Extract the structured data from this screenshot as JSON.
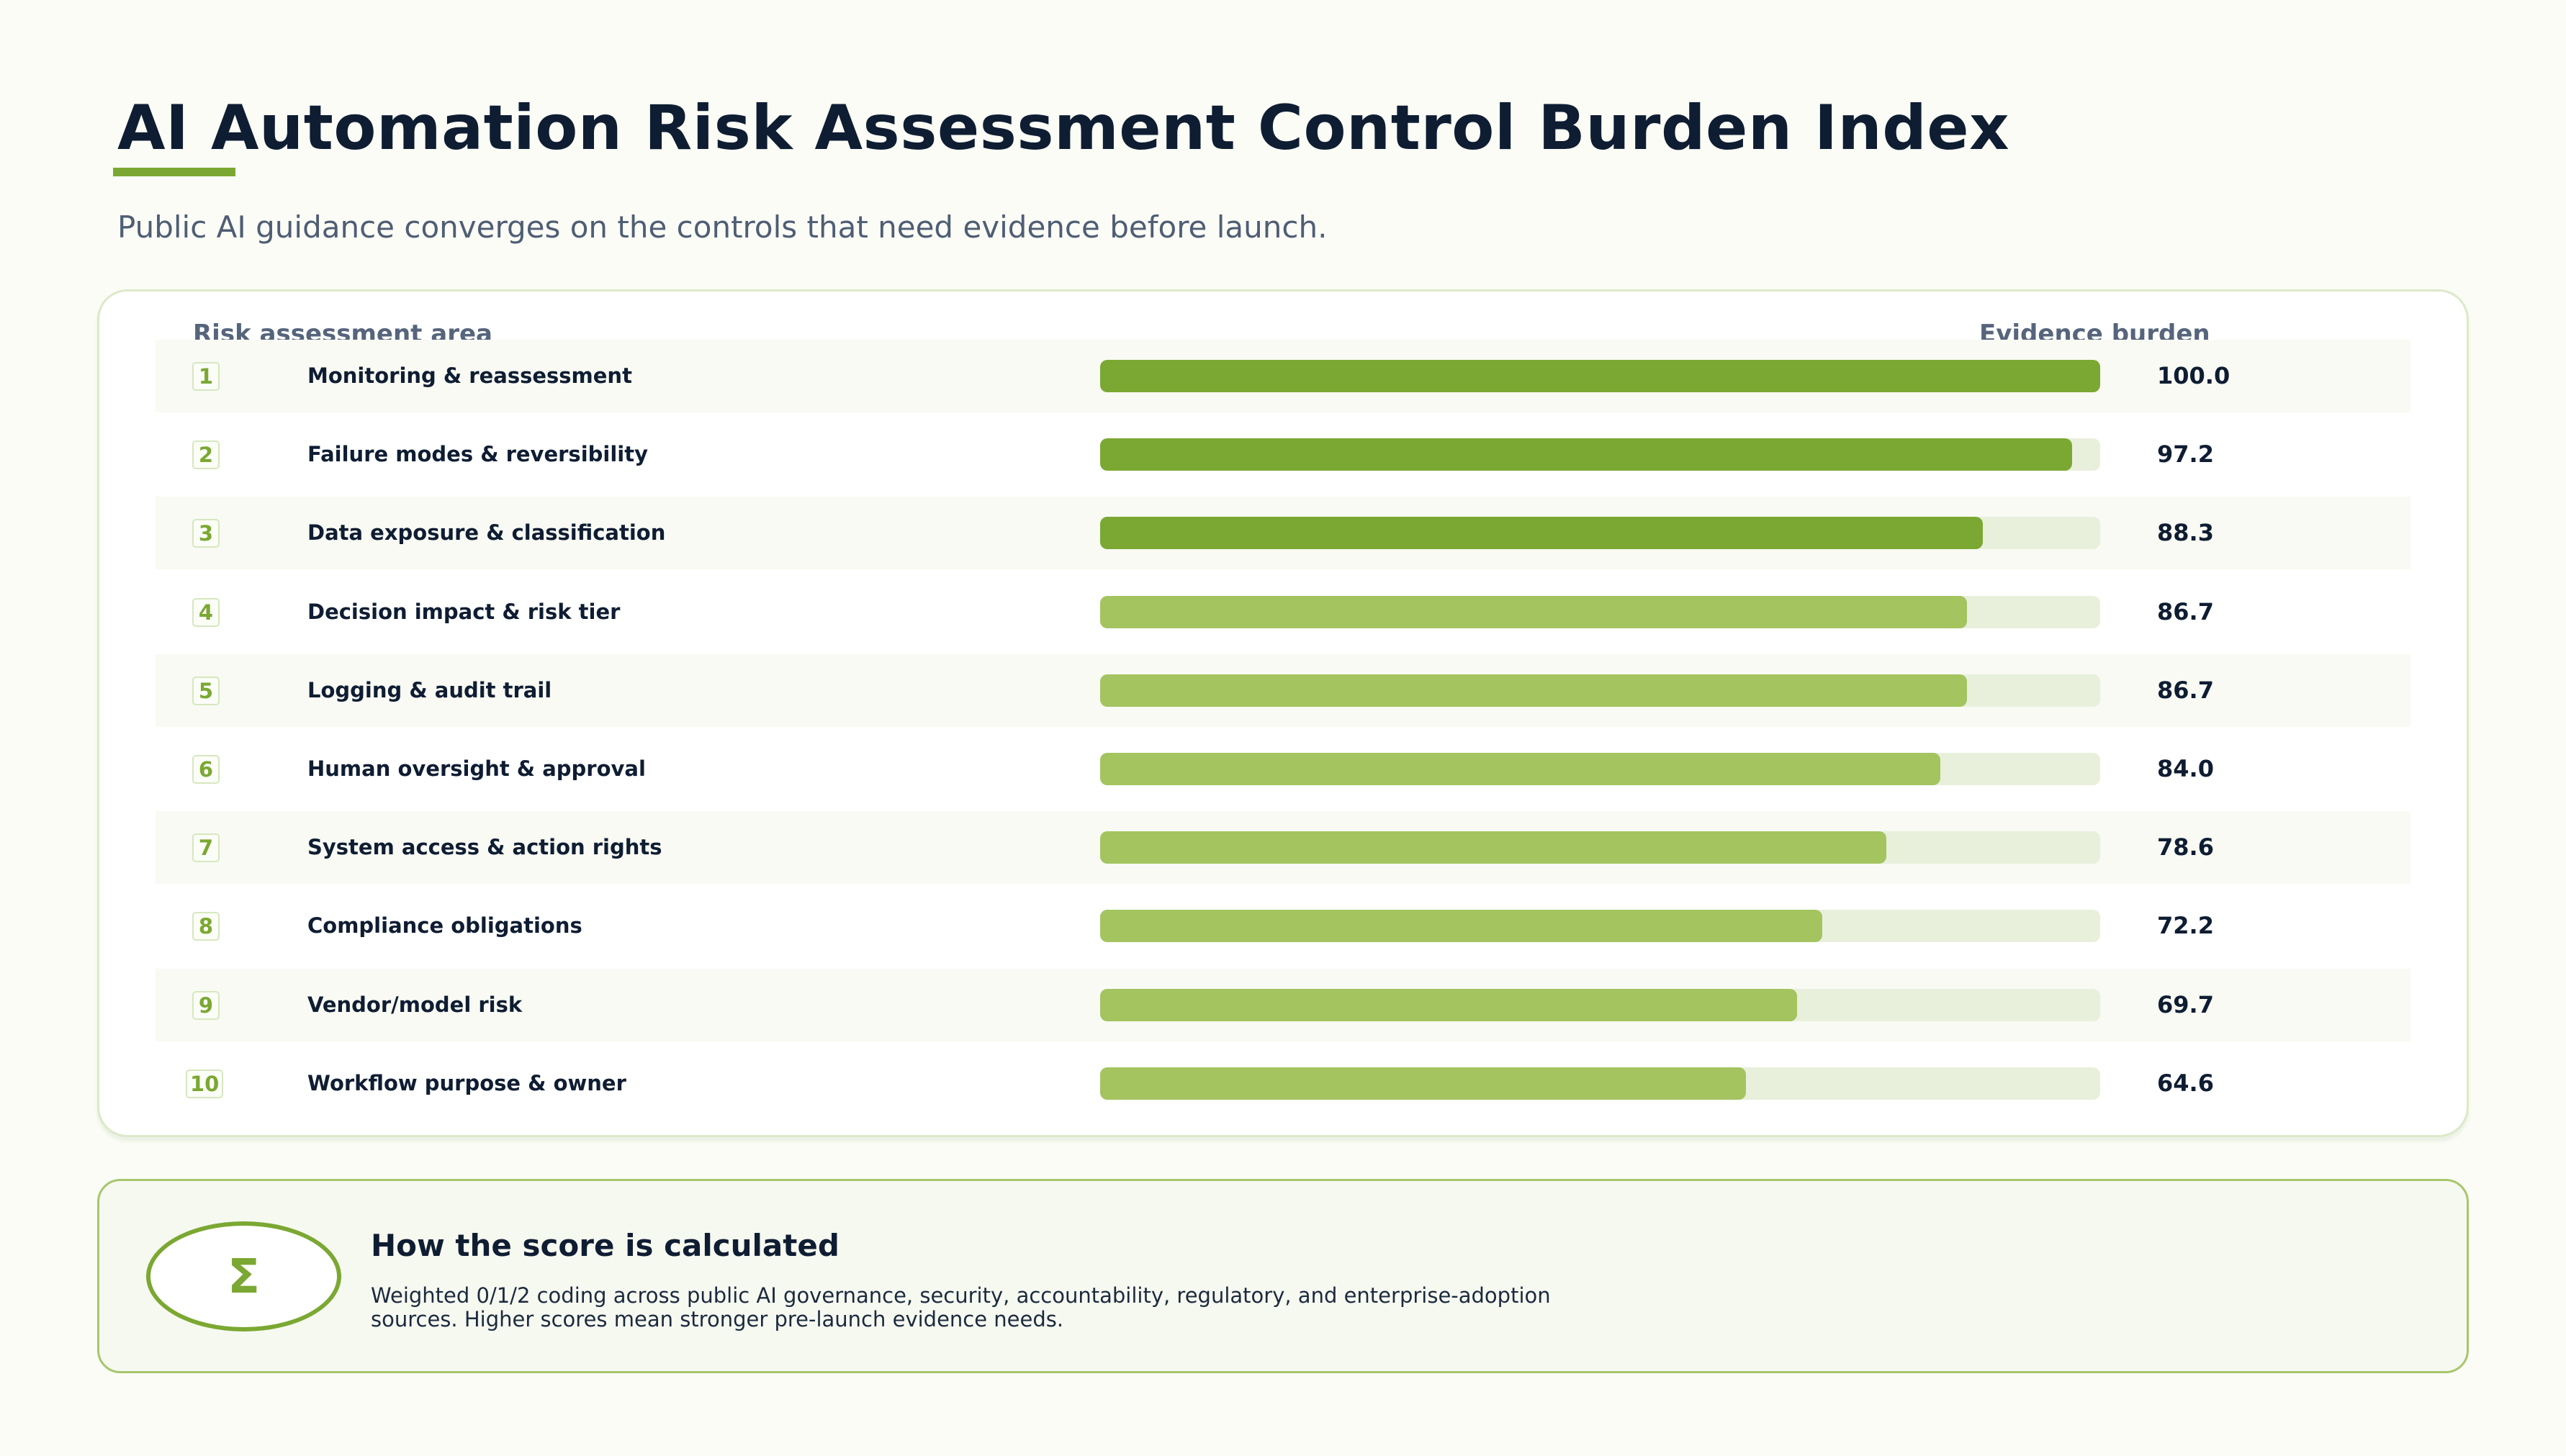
{
  "header": {
    "title": "AI Automation Risk Assessment Control Burden Index",
    "subtitle": "Public AI guidance converges on the controls that need evidence before launch."
  },
  "chart_data": {
    "type": "bar",
    "orientation": "horizontal",
    "xlabel": "Evidence burden",
    "ylabel": "Risk assessment area",
    "xlim": [
      0,
      100
    ],
    "grid": false,
    "legend": "none",
    "categories": [
      "Monitoring & reassessment",
      "Failure modes & reversibility",
      "Data exposure & classification",
      "Decision impact & risk tier",
      "Logging & audit trail",
      "Human oversight & approval",
      "System access & action rights",
      "Compliance obligations",
      "Vendor/model risk",
      "Workflow purpose & owner"
    ],
    "values": [
      100.0,
      97.2,
      88.3,
      86.7,
      86.7,
      84.0,
      78.6,
      72.2,
      69.7,
      64.6
    ],
    "value_labels": [
      "100.0",
      "97.2",
      "88.3",
      "86.7",
      "86.7",
      "84.0",
      "78.6",
      "72.2",
      "69.7",
      "64.6"
    ],
    "ranks": [
      "1",
      "2",
      "3",
      "4",
      "5",
      "6",
      "7",
      "8",
      "9",
      "10"
    ],
    "highlight_top_n": 3,
    "colors": {
      "highlight": "#7ba832",
      "bar": "#a3c45f",
      "track": "#e8f0dc"
    }
  },
  "method": {
    "icon": "sigma-icon",
    "icon_glyph": "Σ",
    "title": "How the score is calculated",
    "text": "Weighted 0/1/2 coding across public AI governance, security, accountability, regulatory, and enterprise-adoption sources. Higher scores mean stronger pre-launch evidence needs."
  }
}
